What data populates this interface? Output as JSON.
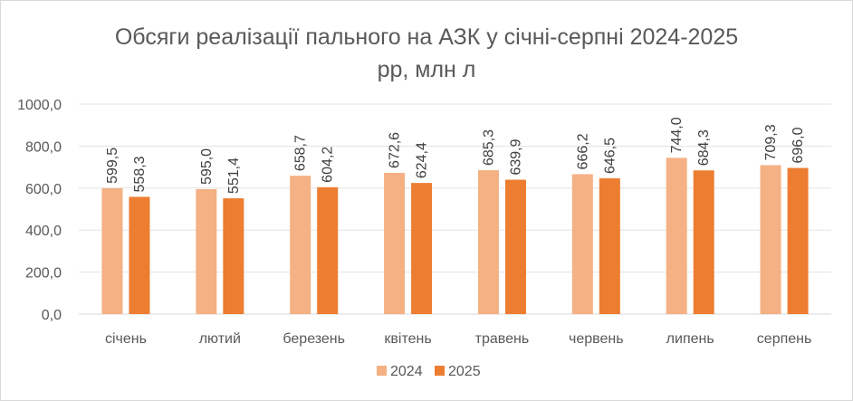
{
  "chart_data": {
    "type": "bar",
    "title_line1": "Обсяги реалізації пального на АЗК у січні-серпні 2024-2025",
    "title_line2": "рр, млн л",
    "categories": [
      "січень",
      "лютий",
      "березень",
      "квітень",
      "травень",
      "червень",
      "липень",
      "серпень"
    ],
    "series": [
      {
        "name": "2024",
        "color": "#f4b183",
        "values": [
          599.5,
          595.0,
          658.7,
          672.6,
          685.3,
          666.2,
          744.0,
          709.3
        ]
      },
      {
        "name": "2025",
        "color": "#ed7d31",
        "values": [
          558.3,
          551.4,
          604.2,
          624.4,
          639.9,
          646.5,
          684.3,
          696.0
        ]
      }
    ],
    "y_ticks": [
      "0,0",
      "200,0",
      "400,0",
      "600,0",
      "800,0",
      "1000,0"
    ],
    "ylim": [
      0,
      1000
    ],
    "grid": true,
    "legend_position": "bottom"
  }
}
